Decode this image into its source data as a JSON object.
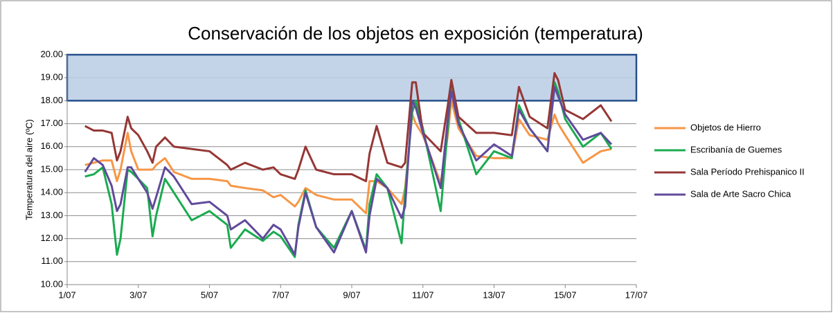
{
  "chart_data": {
    "type": "line",
    "title": "Conservación de los objetos en exposición (temperatura)",
    "y_label": "Temperatura del aire (ºC)",
    "shaded_range": [
      18,
      20
    ],
    "x": [
      1.5,
      1.75,
      2,
      2.25,
      2.4,
      2.5,
      2.7,
      2.8,
      3,
      3.25,
      3.4,
      3.5,
      3.75,
      4,
      4.5,
      5,
      5.5,
      5.6,
      6,
      6.5,
      6.8,
      7,
      7.4,
      7.5,
      7.7,
      8,
      8.5,
      9,
      9.4,
      9.5,
      9.7,
      10,
      10.4,
      10.5,
      10.7,
      10.8,
      11,
      11.5,
      11.7,
      11.8,
      12,
      12.5,
      13,
      13.5,
      13.7,
      14,
      14.5,
      14.7,
      14.8,
      15,
      15.5,
      16,
      16.3
    ],
    "series": [
      {
        "name": "Objetos de Hierro",
        "color": "#f79646",
        "values": [
          15.2,
          15.3,
          15.4,
          15.4,
          14.5,
          15.0,
          16.6,
          15.8,
          15.0,
          15.0,
          15.0,
          15.2,
          15.5,
          14.9,
          14.6,
          14.6,
          14.5,
          14.3,
          14.2,
          14.1,
          13.8,
          13.9,
          13.4,
          13.6,
          14.2,
          13.9,
          13.7,
          13.7,
          13.1,
          14.5,
          14.5,
          14.2,
          13.5,
          14.2,
          17.4,
          17.0,
          16.5,
          14.4,
          16.5,
          18.0,
          16.8,
          15.6,
          15.5,
          15.5,
          17.2,
          16.5,
          16.3,
          17.4,
          17.0,
          16.5,
          15.3,
          15.8,
          15.9
        ]
      },
      {
        "name": "Escribanía de Guemes",
        "color": "#1aab50",
        "values": [
          14.7,
          14.8,
          15.1,
          13.5,
          11.3,
          12.0,
          15.0,
          14.9,
          14.6,
          14.2,
          12.1,
          13.0,
          14.6,
          14.0,
          12.8,
          13.2,
          12.6,
          11.6,
          12.4,
          11.9,
          12.3,
          12.1,
          11.2,
          12.6,
          14.1,
          12.5,
          11.6,
          13.2,
          11.5,
          13.5,
          14.8,
          14.2,
          11.8,
          14.0,
          17.5,
          18.0,
          16.8,
          13.2,
          16.8,
          18.6,
          17.2,
          14.8,
          15.8,
          15.5,
          17.8,
          16.8,
          15.8,
          18.8,
          18.4,
          17.2,
          16.0,
          16.6,
          15.9
        ]
      },
      {
        "name": "Sala Período Prehispanico II",
        "color": "#953735",
        "values": [
          16.9,
          16.7,
          16.7,
          16.6,
          15.4,
          15.8,
          17.3,
          16.8,
          16.5,
          15.8,
          15.3,
          16.0,
          16.4,
          16.0,
          15.9,
          15.8,
          15.2,
          15.0,
          15.3,
          15.0,
          15.1,
          14.8,
          14.6,
          15.0,
          16.0,
          15.0,
          14.8,
          14.8,
          14.5,
          15.7,
          16.9,
          15.3,
          15.1,
          15.3,
          18.8,
          18.8,
          16.6,
          15.8,
          17.8,
          18.9,
          17.3,
          16.6,
          16.6,
          16.5,
          18.6,
          17.3,
          16.8,
          19.2,
          18.9,
          17.6,
          17.2,
          17.8,
          17.1
        ]
      },
      {
        "name": "Sala de Arte Sacro Chica",
        "color": "#604a9b",
        "values": [
          14.9,
          15.5,
          15.2,
          14.3,
          13.2,
          13.5,
          15.1,
          15.1,
          14.6,
          14.0,
          13.3,
          13.8,
          15.1,
          14.7,
          13.5,
          13.6,
          13.0,
          12.4,
          12.8,
          12.0,
          12.6,
          12.4,
          11.3,
          12.5,
          14.0,
          12.5,
          11.4,
          13.2,
          11.4,
          13.0,
          14.6,
          14.2,
          12.9,
          13.4,
          18.0,
          17.7,
          16.6,
          14.2,
          17.2,
          18.4,
          17.0,
          15.4,
          16.1,
          15.6,
          17.6,
          16.8,
          15.8,
          18.6,
          18.2,
          17.4,
          16.3,
          16.6,
          16.1
        ]
      }
    ],
    "xlim": [
      1,
      17
    ],
    "xticks": [
      {
        "value": 1,
        "label": "1/07"
      },
      {
        "value": 3,
        "label": "3/07"
      },
      {
        "value": 5,
        "label": "5/07"
      },
      {
        "value": 7,
        "label": "7/07"
      },
      {
        "value": 9,
        "label": "9/07"
      },
      {
        "value": 11,
        "label": "11/07"
      },
      {
        "value": 13,
        "label": "13/07"
      },
      {
        "value": 15,
        "label": "15/07"
      },
      {
        "value": 17,
        "label": "17/07"
      }
    ],
    "ylim": [
      10,
      20
    ],
    "yticks": [
      {
        "value": 10,
        "label": "10.00"
      },
      {
        "value": 11,
        "label": "11.00"
      },
      {
        "value": 12,
        "label": "12.00"
      },
      {
        "value": 13,
        "label": "13.00"
      },
      {
        "value": 14,
        "label": "14.00"
      },
      {
        "value": 15,
        "label": "15.00"
      },
      {
        "value": 16,
        "label": "16.00"
      },
      {
        "value": 17,
        "label": "17.00"
      },
      {
        "value": 18,
        "label": "18.00"
      },
      {
        "value": 19,
        "label": "19.00"
      },
      {
        "value": 20,
        "label": "20.00"
      }
    ],
    "grid": true,
    "legend": "right"
  }
}
